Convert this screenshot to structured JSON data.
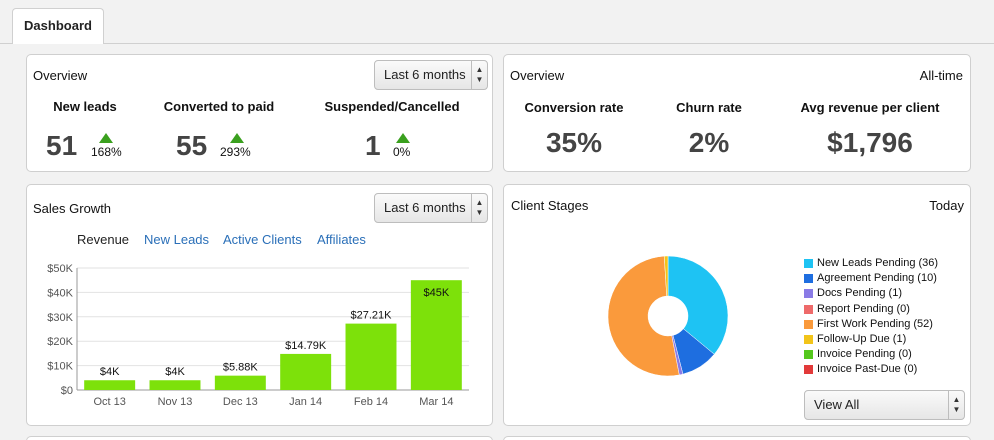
{
  "tab": {
    "label": "Dashboard"
  },
  "overview_left": {
    "title": "Overview",
    "period": "Last 6 months",
    "stats": [
      {
        "label": "New leads",
        "value": "51",
        "change": "168%"
      },
      {
        "label": "Converted to paid",
        "value": "55",
        "change": "293%"
      },
      {
        "label": "Suspended/Cancelled",
        "value": "1",
        "change": "0%"
      }
    ]
  },
  "overview_right": {
    "title": "Overview",
    "period": "All-time",
    "stats": [
      {
        "label": "Conversion rate",
        "value": "35%"
      },
      {
        "label": "Churn rate",
        "value": "2%"
      },
      {
        "label": "Avg revenue per client",
        "value": "$1,796"
      }
    ]
  },
  "sales_growth": {
    "title": "Sales Growth",
    "period": "Last 6 months",
    "tabs": [
      "Revenue",
      "New Leads",
      "Active Clients",
      "Affiliates"
    ],
    "active_tab": "Revenue"
  },
  "client_stages": {
    "title": "Client Stages",
    "period": "Today",
    "filter": "View All",
    "legend": [
      {
        "label": "New Leads Pending (36)",
        "color": "#1ec3f3"
      },
      {
        "label": "Agreement Pending (10)",
        "color": "#1e6ee0"
      },
      {
        "label": "Docs Pending (1)",
        "color": "#8a7be6"
      },
      {
        "label": "Report Pending (0)",
        "color": "#ee6a6a"
      },
      {
        "label": "First Work Pending (52)",
        "color": "#fa9a3c"
      },
      {
        "label": "Follow-Up Due (1)",
        "color": "#f2c419"
      },
      {
        "label": "Invoice Pending (0)",
        "color": "#55c81e"
      },
      {
        "label": "Invoice Past-Due (0)",
        "color": "#e23a3a"
      }
    ]
  },
  "chart_data": [
    {
      "type": "bar",
      "title": "",
      "categories": [
        "Oct 13",
        "Nov 13",
        "Dec 13",
        "Jan 14",
        "Feb 14",
        "Mar 14"
      ],
      "values": [
        4000,
        4000,
        5880,
        14790,
        27210,
        45000
      ],
      "data_labels": [
        "$4K",
        "$4K",
        "$5.88K",
        "$14.79K",
        "$27.21K",
        "$45K"
      ],
      "yticks": [
        "$0",
        "$10K",
        "$20K",
        "$30K",
        "$40K",
        "$50K"
      ],
      "ylim": [
        0,
        50000
      ],
      "grid": true,
      "bar_color": "#7de10a"
    },
    {
      "type": "pie",
      "title": "",
      "donut": true,
      "labels": [
        "New Leads Pending",
        "Agreement Pending",
        "Docs Pending",
        "Report Pending",
        "First Work Pending",
        "Follow-Up Due",
        "Invoice Pending",
        "Invoice Past-Due"
      ],
      "values": [
        36,
        10,
        1,
        0,
        52,
        1,
        0,
        0
      ]
    }
  ]
}
